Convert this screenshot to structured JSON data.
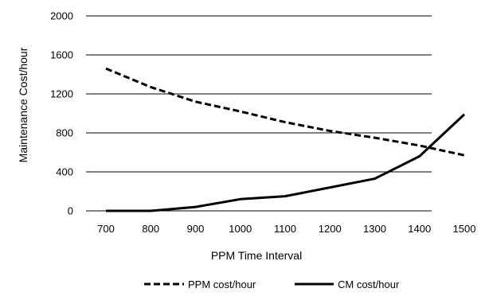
{
  "chart_data": {
    "type": "line",
    "xlabel": "PPM Time Interval",
    "ylabel": "Maintenance Cost/hour",
    "x": [
      700,
      800,
      900,
      1000,
      1100,
      1200,
      1300,
      1400,
      1500
    ],
    "x_ticks": [
      "700",
      "800",
      "900",
      "1000",
      "1100",
      "1200",
      "1300",
      "1400",
      "1500"
    ],
    "y_ticks": [
      "0",
      "400",
      "800",
      "1200",
      "1600",
      "2000"
    ],
    "ylim": [
      0,
      2000
    ],
    "grid": "horizontal",
    "legend_position": "bottom",
    "series": [
      {
        "name": "PPM cost/hour",
        "style": "dashed",
        "color": "#000000",
        "values": [
          1460,
          1270,
          1120,
          1020,
          910,
          820,
          750,
          670,
          570
        ]
      },
      {
        "name": "CM cost/hour",
        "style": "solid",
        "color": "#000000",
        "values": [
          0,
          0,
          40,
          120,
          150,
          240,
          330,
          560,
          990
        ]
      }
    ]
  }
}
